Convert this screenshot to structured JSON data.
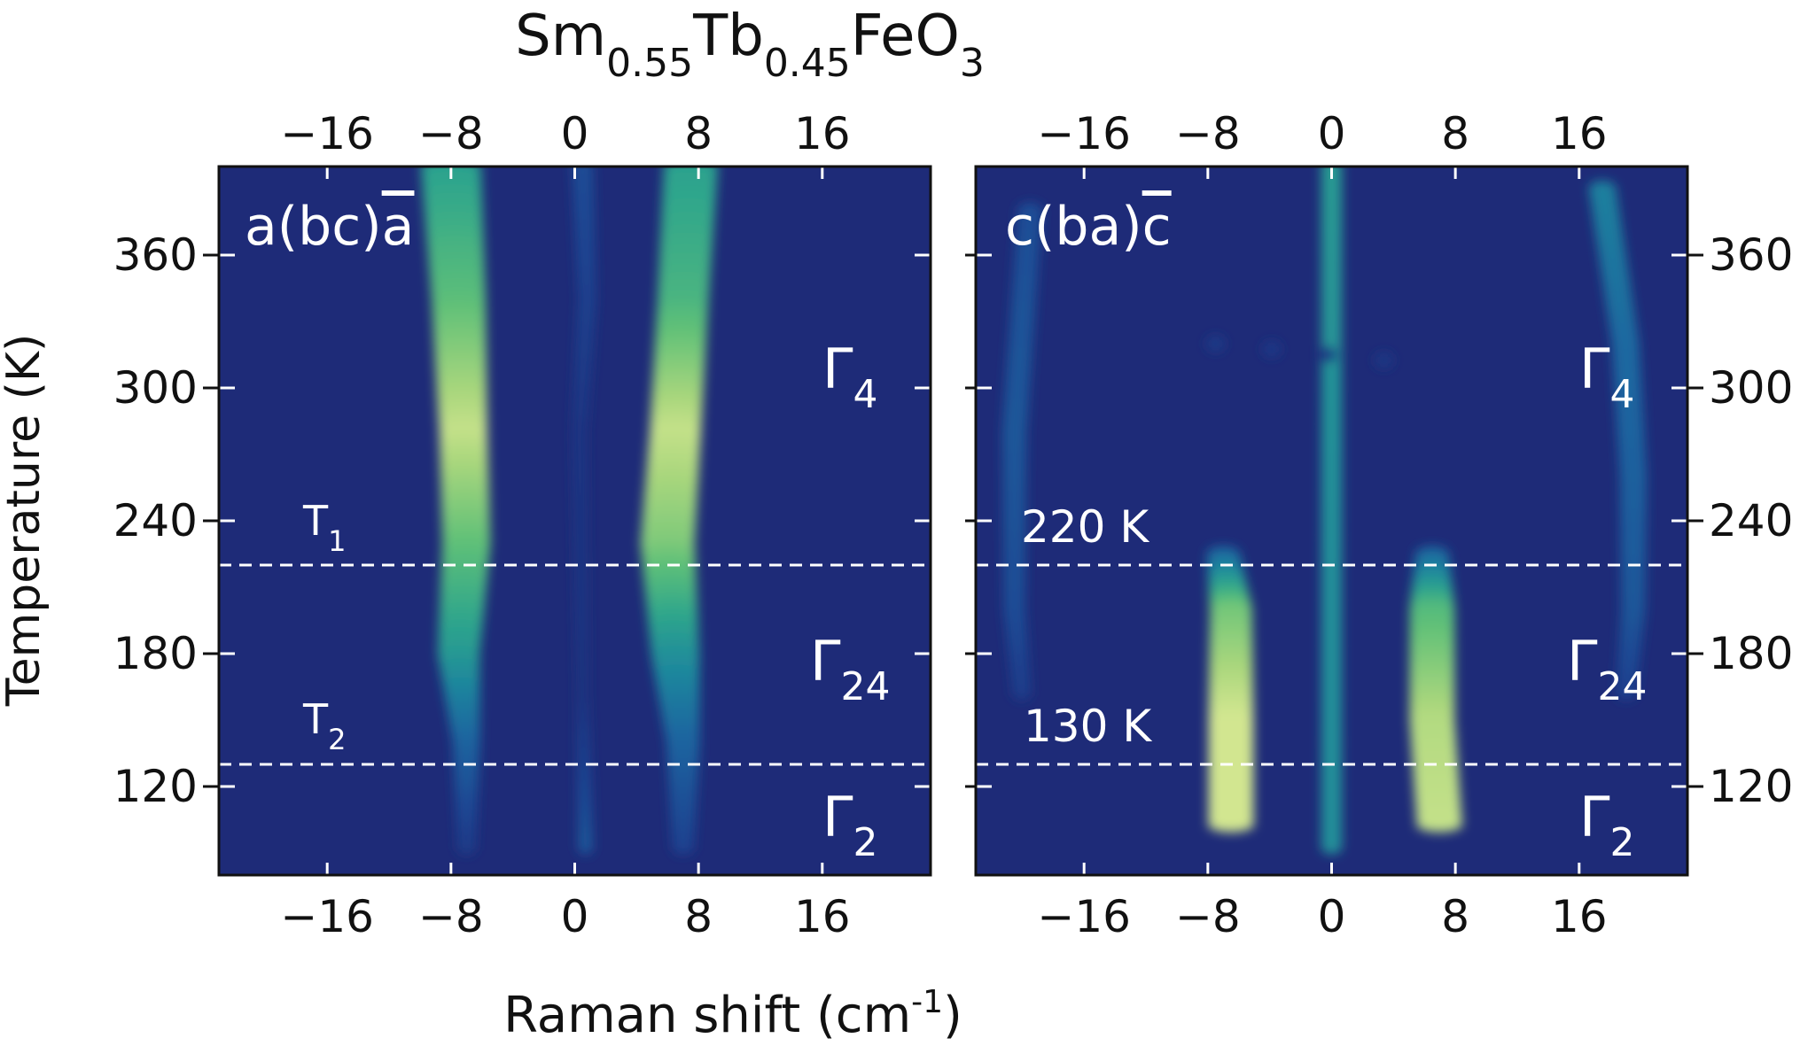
{
  "title": {
    "base1": "Sm",
    "sub1": "0.55",
    "base2": "Tb",
    "sub2": "0.45",
    "base3": "FeO",
    "sub3": "3"
  },
  "axes": {
    "ylabel": "Temperature (K)",
    "xlabel_main": "Raman shift (cm",
    "xlabel_sup": "-1",
    "xlabel_close": ")"
  },
  "colors": {
    "background": "#1e2b78",
    "colormap": [
      "#1e2b78",
      "#1d4592",
      "#1a66a0",
      "#1e879d",
      "#2ea58c",
      "#5fc078",
      "#a8d67c",
      "#e8ef9a"
    ],
    "frame": "#111111",
    "annotation": "#ffffff"
  },
  "chart_data": [
    {
      "type": "heatmap",
      "panel": "left",
      "title_prefix": "a(bc)",
      "title_bar": "a",
      "x_ticks": [
        -16,
        -8,
        0,
        8,
        16
      ],
      "x_tick_labels": [
        "−16",
        "−8",
        "0",
        "8",
        "16"
      ],
      "y_ticks": [
        120,
        180,
        240,
        300,
        360
      ],
      "y_tick_labels": [
        "120",
        "180",
        "240",
        "300",
        "360"
      ],
      "xlim": [
        -23,
        23
      ],
      "ylim": [
        80,
        400
      ],
      "hlines": [
        220,
        130
      ],
      "labels": {
        "T1": {
          "main": "T",
          "sub": "1"
        },
        "T2": {
          "main": "T",
          "sub": "2"
        },
        "G4": {
          "main": "Γ",
          "sub": "4"
        },
        "G24": {
          "main": "Γ",
          "sub": "24"
        },
        "G2": {
          "main": "Γ",
          "sub": "2"
        }
      },
      "modes": [
        {
          "name": "mode-minus-8",
          "points": [
            [
              -8.0,
              400,
              4.0,
              0.55
            ],
            [
              -7.5,
              340,
              3.6,
              0.7
            ],
            [
              -7.2,
              280,
              3.2,
              0.92
            ],
            [
              -7.0,
              230,
              3.2,
              0.72
            ],
            [
              -7.5,
              180,
              2.8,
              0.52
            ],
            [
              -7.0,
              140,
              1.8,
              0.28
            ],
            [
              -7.0,
              90,
              1.2,
              0.08
            ]
          ]
        },
        {
          "name": "mode-plus-8",
          "points": [
            [
              7.5,
              400,
              3.6,
              0.55
            ],
            [
              7.0,
              340,
              3.4,
              0.65
            ],
            [
              6.5,
              280,
              3.4,
              0.92
            ],
            [
              6.0,
              230,
              3.6,
              0.78
            ],
            [
              6.5,
              180,
              3.2,
              0.48
            ],
            [
              7.0,
              140,
              2.2,
              0.28
            ],
            [
              7.0,
              90,
              1.4,
              0.12
            ]
          ]
        },
        {
          "name": "mode-zero",
          "points": [
            [
              0.5,
              400,
              1.4,
              0.18
            ],
            [
              0.8,
              340,
              1.2,
              0.12
            ],
            [
              0.3,
              280,
              1.0,
              0.06
            ],
            [
              0.5,
              160,
              0.8,
              0.05
            ],
            [
              0.7,
              90,
              1.0,
              0.22
            ]
          ]
        }
      ]
    },
    {
      "type": "heatmap",
      "panel": "right",
      "title_prefix": "c(ba)",
      "title_bar": "c",
      "x_ticks": [
        -16,
        -8,
        0,
        8,
        16
      ],
      "x_tick_labels": [
        "−16",
        "−8",
        "0",
        "8",
        "16"
      ],
      "y_ticks": [
        120,
        180,
        240,
        300,
        360
      ],
      "y_tick_labels": [
        "120",
        "180",
        "240",
        "300",
        "360"
      ],
      "xlim": [
        -23,
        23
      ],
      "ylim": [
        80,
        400
      ],
      "hlines": [
        220,
        130
      ],
      "labels": {
        "K220": "220 K",
        "K130": "130 K",
        "G4": {
          "main": "Γ",
          "sub": "4"
        },
        "G24": {
          "main": "Γ",
          "sub": "24"
        },
        "G2": {
          "main": "Γ",
          "sub": "2"
        }
      },
      "modes": [
        {
          "name": "mode-zero",
          "points": [
            [
              0.0,
              400,
              1.4,
              0.52
            ],
            [
              0.0,
              300,
              1.4,
              0.48
            ],
            [
              0.0,
              200,
              1.4,
              0.46
            ],
            [
              0.0,
              90,
              1.4,
              0.46
            ]
          ]
        },
        {
          "name": "mode-minus-7",
          "points": [
            [
              -7.0,
              225,
              2.2,
              0.28
            ],
            [
              -6.5,
              200,
              2.8,
              0.75
            ],
            [
              -6.5,
              150,
              3.0,
              0.95
            ],
            [
              -6.5,
              100,
              3.0,
              0.95
            ]
          ]
        },
        {
          "name": "mode-plus-7",
          "points": [
            [
              6.5,
              225,
              2.2,
              0.28
            ],
            [
              6.5,
              200,
              3.0,
              0.68
            ],
            [
              6.5,
              150,
              3.0,
              0.88
            ],
            [
              7.0,
              100,
              3.0,
              0.92
            ]
          ]
        },
        {
          "name": "mode-minus-20",
          "points": [
            [
              -19.5,
              380,
              1.6,
              0.18
            ],
            [
              -20.5,
              280,
              1.6,
              0.22
            ],
            [
              -20.5,
              200,
              1.4,
              0.18
            ],
            [
              -20.0,
              160,
              1.2,
              0.1
            ]
          ]
        },
        {
          "name": "mode-plus-19",
          "points": [
            [
              17.5,
              390,
              1.8,
              0.4
            ],
            [
              19.0,
              320,
              1.8,
              0.3
            ],
            [
              19.5,
              260,
              1.8,
              0.26
            ],
            [
              19.5,
              200,
              1.6,
              0.22
            ],
            [
              19.0,
              160,
              1.3,
              0.12
            ]
          ]
        },
        {
          "name": "mode-faint-sides",
          "points": [
            [
              -7.5,
              320,
              1.2,
              0.08
            ],
            [
              7.0,
              310,
              1.2,
              0.06
            ]
          ]
        }
      ]
    }
  ]
}
